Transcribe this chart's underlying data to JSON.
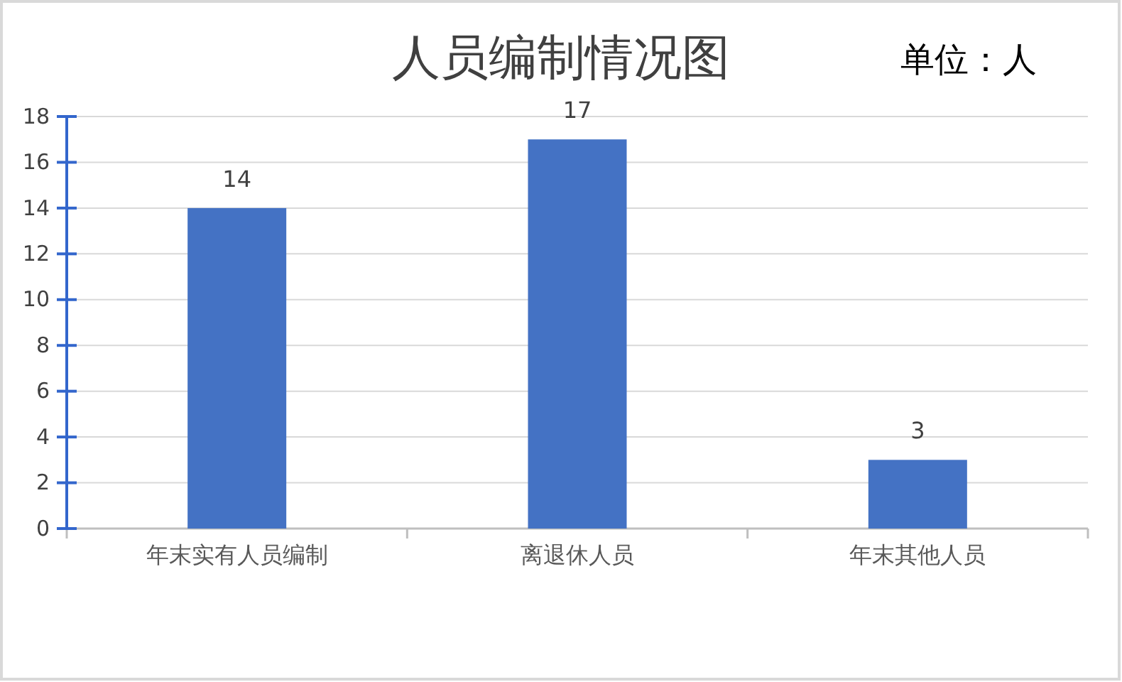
{
  "chart_data": {
    "type": "bar",
    "title": "人员编制情况图",
    "annotations": [
      "单位：人"
    ],
    "categories": [
      "年末实有人员编制",
      "离退休人员",
      "年末其他人员"
    ],
    "values": [
      14,
      17,
      3
    ],
    "color": "#4472c4",
    "ylim": [
      0,
      18
    ],
    "yticks": [
      0,
      2,
      4,
      6,
      8,
      10,
      12,
      14,
      16,
      18
    ],
    "grid": "y",
    "data_labels": true
  }
}
